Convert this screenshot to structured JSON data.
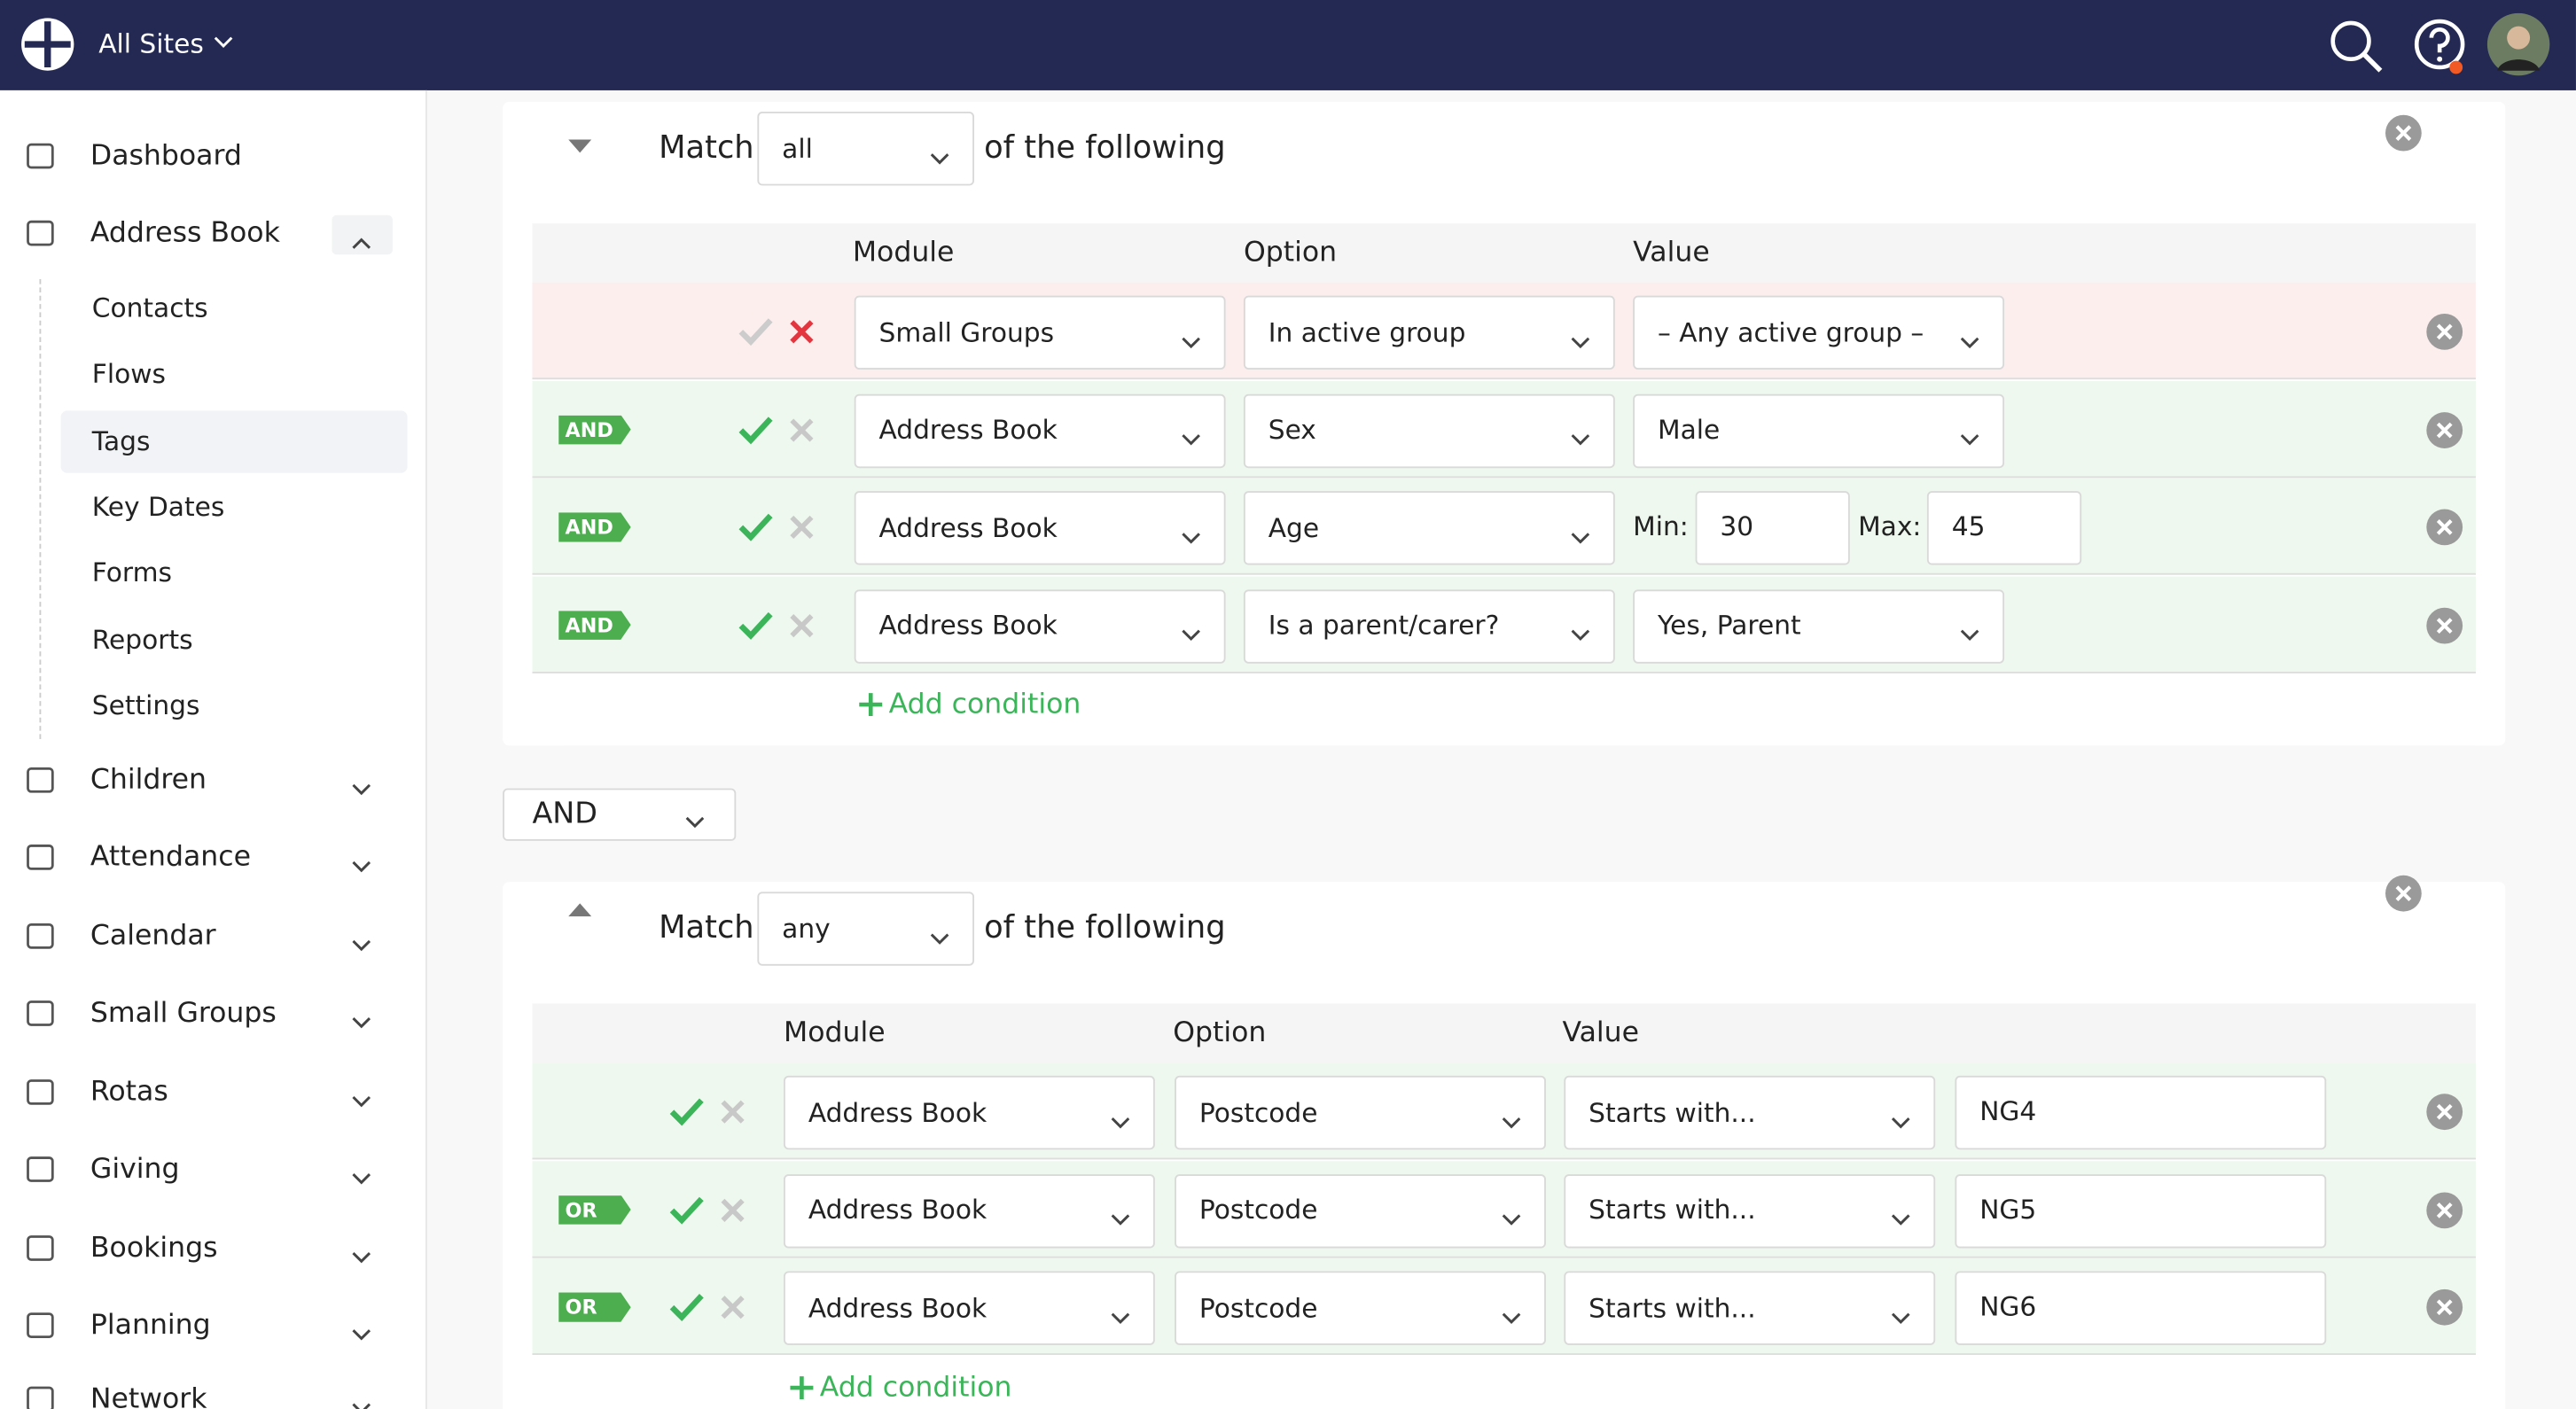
{
  "header": {
    "site": "All Sites"
  },
  "sidebar": {
    "items": [
      "Dashboard",
      "Address Book",
      "Children",
      "Attendance",
      "Calendar",
      "Small Groups",
      "Rotas",
      "Giving",
      "Bookings",
      "Planning",
      "Network"
    ],
    "sub_items": [
      "Contacts",
      "Flows",
      "Tags",
      "Key Dates",
      "Forms",
      "Reports",
      "Settings"
    ]
  },
  "groups": [
    {
      "match_label": "Match",
      "match": "all",
      "suffix": "of the following",
      "columns": [
        "Module",
        "Option",
        "Value"
      ],
      "add": "Add condition",
      "conditions": [
        {
          "module": "Small Groups",
          "option": "In active group",
          "value": "– Any active group –"
        },
        {
          "connector": "AND",
          "module": "Address Book",
          "option": "Sex",
          "value": "Male"
        },
        {
          "connector": "AND",
          "module": "Address Book",
          "option": "Age",
          "min_label": "Min:",
          "min": "30",
          "max_label": "Max:",
          "max": "45"
        },
        {
          "connector": "AND",
          "module": "Address Book",
          "option": "Is a parent/carer?",
          "value": "Yes, Parent"
        }
      ]
    },
    {
      "match_label": "Match",
      "match": "any",
      "suffix": "of the following",
      "columns": [
        "Module",
        "Option",
        "Value"
      ],
      "add": "Add condition",
      "conditions": [
        {
          "module": "Address Book",
          "option": "Postcode",
          "value": "Starts with...",
          "text": "NG4"
        },
        {
          "connector": "OR",
          "module": "Address Book",
          "option": "Postcode",
          "value": "Starts with...",
          "text": "NG5"
        },
        {
          "connector": "OR",
          "module": "Address Book",
          "option": "Postcode",
          "value": "Starts with...",
          "text": "NG6"
        }
      ]
    }
  ],
  "joiner": "AND"
}
